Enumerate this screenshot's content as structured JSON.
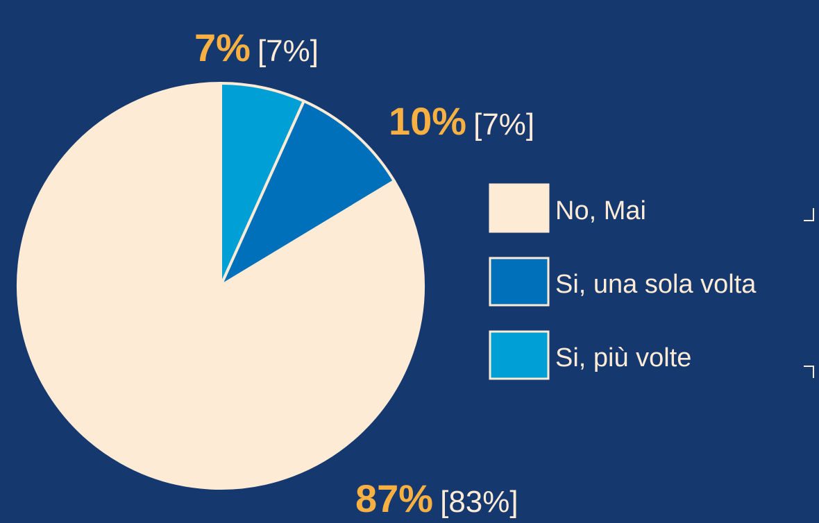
{
  "chart_data": {
    "type": "pie",
    "categories": [
      "No, Mai",
      "Si, una sola volta",
      "Si, più volte"
    ],
    "values": [
      87,
      10,
      7
    ],
    "value_labels": [
      "87%",
      "10%",
      "7%"
    ],
    "previous_values": [
      83,
      7,
      7
    ],
    "previous_value_labels": [
      "[83%]",
      "[7%]",
      "[7%]"
    ],
    "colors": [
      "#fdebd6",
      "#0070bb",
      "#00a0d6"
    ],
    "legend": "right"
  }
}
